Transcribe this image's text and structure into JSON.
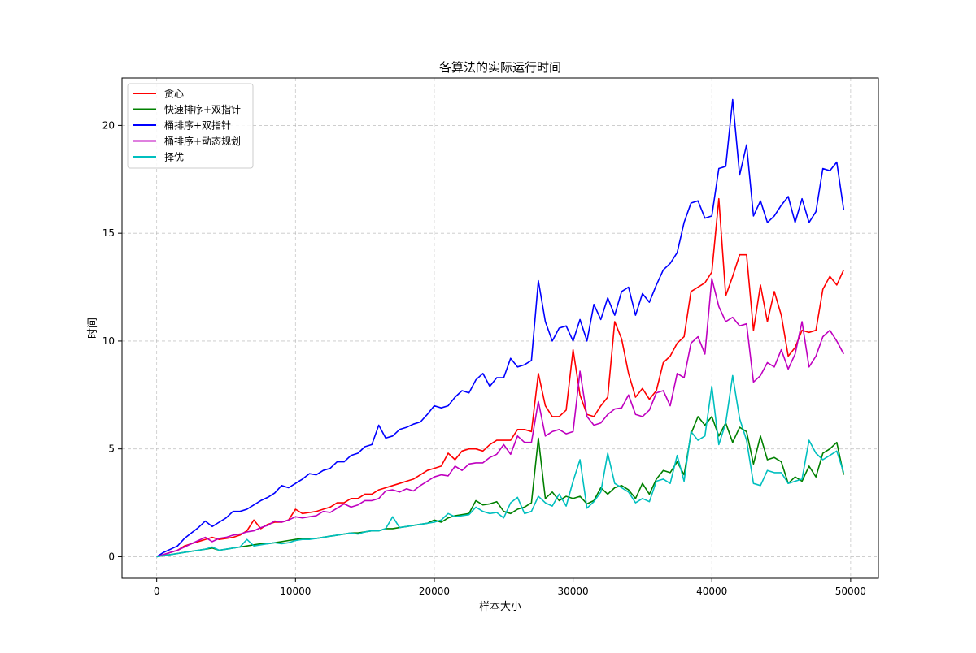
{
  "chart_data": {
    "type": "line",
    "title": "各算法的实际运行时间",
    "xlabel": "样本大小",
    "ylabel": "时间",
    "xlim": [
      -2500,
      52000
    ],
    "ylim": [
      -1.0,
      22.2
    ],
    "xticks": [
      0,
      10000,
      20000,
      30000,
      40000,
      50000
    ],
    "yticks": [
      0,
      5,
      10,
      15,
      20
    ],
    "grid": true,
    "legend_position": "top-left",
    "x": [
      0,
      500,
      1000,
      1500,
      2000,
      2500,
      3000,
      3500,
      4000,
      4500,
      5000,
      5500,
      6000,
      6500,
      7000,
      7500,
      8000,
      8500,
      9000,
      9500,
      10000,
      10500,
      11000,
      11500,
      12000,
      12500,
      13000,
      13500,
      14000,
      14500,
      15000,
      15500,
      16000,
      16500,
      17000,
      17500,
      18000,
      18500,
      19000,
      19500,
      20000,
      20500,
      21000,
      21500,
      22000,
      22500,
      23000,
      23500,
      24000,
      24500,
      25000,
      25500,
      26000,
      26500,
      27000,
      27500,
      28000,
      28500,
      29000,
      29500,
      30000,
      30500,
      31000,
      31500,
      32000,
      32500,
      33000,
      33500,
      34000,
      34500,
      35000,
      35500,
      36000,
      36500,
      37000,
      37500,
      38000,
      38500,
      39000,
      39500,
      40000,
      40500,
      41000,
      41500,
      42000,
      42500,
      43000,
      43500,
      44000,
      44500,
      45000,
      45500,
      46000,
      46500,
      47000,
      47500,
      48000,
      48500,
      49000,
      49500
    ],
    "series": [
      {
        "name": "贪心",
        "color": "#ff0000",
        "values": [
          0,
          0.1,
          0.2,
          0.3,
          0.5,
          0.6,
          0.7,
          0.8,
          0.9,
          0.8,
          0.85,
          0.9,
          1.0,
          1.2,
          1.7,
          1.3,
          1.5,
          1.6,
          1.6,
          1.7,
          2.2,
          2.0,
          2.05,
          2.1,
          2.2,
          2.3,
          2.5,
          2.5,
          2.7,
          2.7,
          2.9,
          2.9,
          3.1,
          3.2,
          3.3,
          3.4,
          3.5,
          3.6,
          3.8,
          4.0,
          4.1,
          4.2,
          4.8,
          4.5,
          4.9,
          5.0,
          5.0,
          4.9,
          5.2,
          5.4,
          5.4,
          5.4,
          5.9,
          5.9,
          5.8,
          8.5,
          7.0,
          6.5,
          6.5,
          6.8,
          9.6,
          7.5,
          6.6,
          6.5,
          7.0,
          7.4,
          10.9,
          10.1,
          8.5,
          7.4,
          7.8,
          7.3,
          7.7,
          9.0,
          9.3,
          9.9,
          10.2,
          12.3,
          12.5,
          12.7,
          13.2,
          16.6,
          12.1,
          13.0,
          14.0,
          14.0,
          10.5,
          12.6,
          10.9,
          12.3,
          11.2,
          9.3,
          9.7,
          10.5,
          10.4,
          10.5,
          12.4,
          13.0,
          12.6,
          13.3
        ]
      },
      {
        "name": "快速排序+双指针",
        "color": "#008000",
        "values": [
          0,
          0.05,
          0.1,
          0.15,
          0.2,
          0.25,
          0.3,
          0.35,
          0.4,
          0.3,
          0.35,
          0.4,
          0.45,
          0.5,
          0.55,
          0.6,
          0.6,
          0.65,
          0.7,
          0.75,
          0.8,
          0.85,
          0.85,
          0.85,
          0.9,
          0.95,
          1.0,
          1.05,
          1.1,
          1.1,
          1.15,
          1.2,
          1.2,
          1.3,
          1.3,
          1.35,
          1.4,
          1.45,
          1.5,
          1.55,
          1.7,
          1.6,
          1.8,
          1.9,
          1.95,
          2.0,
          2.6,
          2.4,
          2.45,
          2.55,
          2.1,
          2.0,
          2.2,
          2.3,
          2.5,
          5.5,
          2.7,
          3.0,
          2.6,
          2.8,
          2.7,
          2.8,
          2.45,
          2.6,
          3.2,
          2.9,
          3.2,
          3.3,
          3.1,
          2.7,
          3.4,
          2.9,
          3.6,
          4.0,
          3.9,
          4.4,
          3.8,
          5.7,
          6.5,
          6.1,
          6.5,
          5.6,
          6.2,
          5.3,
          6.0,
          5.8,
          4.3,
          5.6,
          4.5,
          4.6,
          4.4,
          3.4,
          3.7,
          3.5,
          4.2,
          3.7,
          4.8,
          5.0,
          5.3,
          3.8
        ]
      },
      {
        "name": "桶排序+双指针",
        "color": "#0000ff",
        "values": [
          0,
          0.2,
          0.35,
          0.5,
          0.85,
          1.1,
          1.35,
          1.65,
          1.4,
          1.6,
          1.8,
          2.1,
          2.1,
          2.2,
          2.4,
          2.6,
          2.75,
          2.95,
          3.3,
          3.2,
          3.4,
          3.6,
          3.85,
          3.8,
          4.0,
          4.1,
          4.4,
          4.4,
          4.7,
          4.8,
          5.1,
          5.2,
          6.1,
          5.5,
          5.6,
          5.9,
          6.0,
          6.15,
          6.25,
          6.6,
          7.0,
          6.9,
          7.0,
          7.4,
          7.7,
          7.6,
          8.2,
          8.5,
          7.9,
          8.3,
          8.3,
          9.2,
          8.8,
          8.9,
          9.1,
          12.8,
          10.9,
          10.0,
          10.6,
          10.7,
          10.0,
          11.0,
          10.0,
          11.7,
          11.0,
          12.0,
          11.2,
          12.3,
          12.5,
          11.2,
          12.2,
          11.8,
          12.6,
          13.3,
          13.6,
          14.1,
          15.5,
          16.4,
          16.5,
          15.7,
          15.8,
          18.0,
          18.1,
          21.2,
          17.7,
          19.1,
          15.8,
          16.5,
          15.5,
          15.8,
          16.3,
          16.7,
          15.5,
          16.6,
          15.5,
          16.0,
          18.0,
          17.9,
          18.3,
          16.1
        ]
      },
      {
        "name": "桶排序+动态规划",
        "color": "#bf00bf",
        "values": [
          0,
          0.1,
          0.2,
          0.3,
          0.45,
          0.6,
          0.75,
          0.9,
          0.7,
          0.85,
          0.9,
          1.0,
          1.05,
          1.15,
          1.2,
          1.35,
          1.45,
          1.65,
          1.6,
          1.7,
          1.85,
          1.8,
          1.85,
          1.9,
          2.1,
          2.05,
          2.25,
          2.45,
          2.3,
          2.4,
          2.6,
          2.6,
          2.7,
          3.05,
          3.1,
          3.0,
          3.15,
          3.05,
          3.3,
          3.5,
          3.7,
          3.8,
          3.75,
          4.2,
          4.0,
          4.3,
          4.35,
          4.35,
          4.6,
          4.75,
          5.2,
          4.75,
          5.6,
          5.3,
          5.3,
          7.2,
          5.6,
          5.8,
          5.9,
          5.7,
          5.8,
          8.6,
          6.5,
          6.1,
          6.2,
          6.6,
          6.85,
          6.9,
          7.5,
          6.6,
          6.5,
          6.8,
          7.6,
          7.7,
          7.0,
          8.5,
          8.3,
          9.9,
          10.2,
          9.4,
          12.9,
          11.6,
          10.9,
          11.1,
          10.7,
          10.8,
          8.1,
          8.4,
          9.0,
          8.8,
          9.6,
          8.7,
          9.4,
          10.9,
          8.8,
          9.3,
          10.2,
          10.5,
          10.0,
          9.4
        ]
      },
      {
        "name": "择优",
        "color": "#00bfbf",
        "values": [
          0,
          0.05,
          0.1,
          0.15,
          0.2,
          0.25,
          0.3,
          0.35,
          0.45,
          0.3,
          0.35,
          0.4,
          0.45,
          0.8,
          0.5,
          0.55,
          0.6,
          0.65,
          0.6,
          0.65,
          0.75,
          0.8,
          0.8,
          0.85,
          0.9,
          0.95,
          1.0,
          1.05,
          1.1,
          1.05,
          1.15,
          1.2,
          1.2,
          1.3,
          1.85,
          1.35,
          1.4,
          1.45,
          1.5,
          1.55,
          1.6,
          1.7,
          2.0,
          1.85,
          1.9,
          1.95,
          2.3,
          2.1,
          2.0,
          2.05,
          1.8,
          2.5,
          2.75,
          2.0,
          2.1,
          2.8,
          2.5,
          2.35,
          2.9,
          2.35,
          3.5,
          4.5,
          2.25,
          2.55,
          3.0,
          4.8,
          3.4,
          3.2,
          3.0,
          2.5,
          2.7,
          2.55,
          3.5,
          3.6,
          3.4,
          4.7,
          3.5,
          5.8,
          5.4,
          5.6,
          7.9,
          5.2,
          6.2,
          8.4,
          6.4,
          5.4,
          3.4,
          3.3,
          4.0,
          3.9,
          3.9,
          3.4,
          3.5,
          3.6,
          5.4,
          4.8,
          4.5,
          4.7,
          4.9,
          3.9
        ]
      }
    ]
  }
}
